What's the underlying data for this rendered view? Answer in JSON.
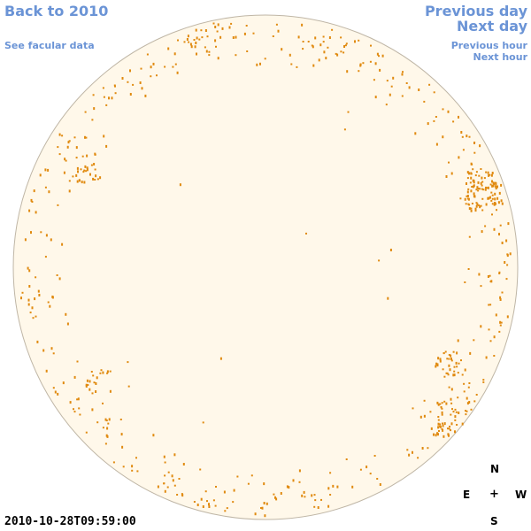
{
  "links": {
    "back": "Back to 2010",
    "facular": "See facular data",
    "previous_day": "Previous day",
    "next_day": "Next day",
    "previous_hour": "Previous hour",
    "next_hour": "Next hour"
  },
  "timestamp": "2010-10-28T09:59:00",
  "compass": {
    "north": "N",
    "east": "E",
    "center": "+",
    "west": "W",
    "south": "S"
  },
  "colors": {
    "link": "#6b94d6",
    "disk_fill": "#fff8ea",
    "disk_edge": "#bfb6a6",
    "facula": "#e08a10"
  }
}
